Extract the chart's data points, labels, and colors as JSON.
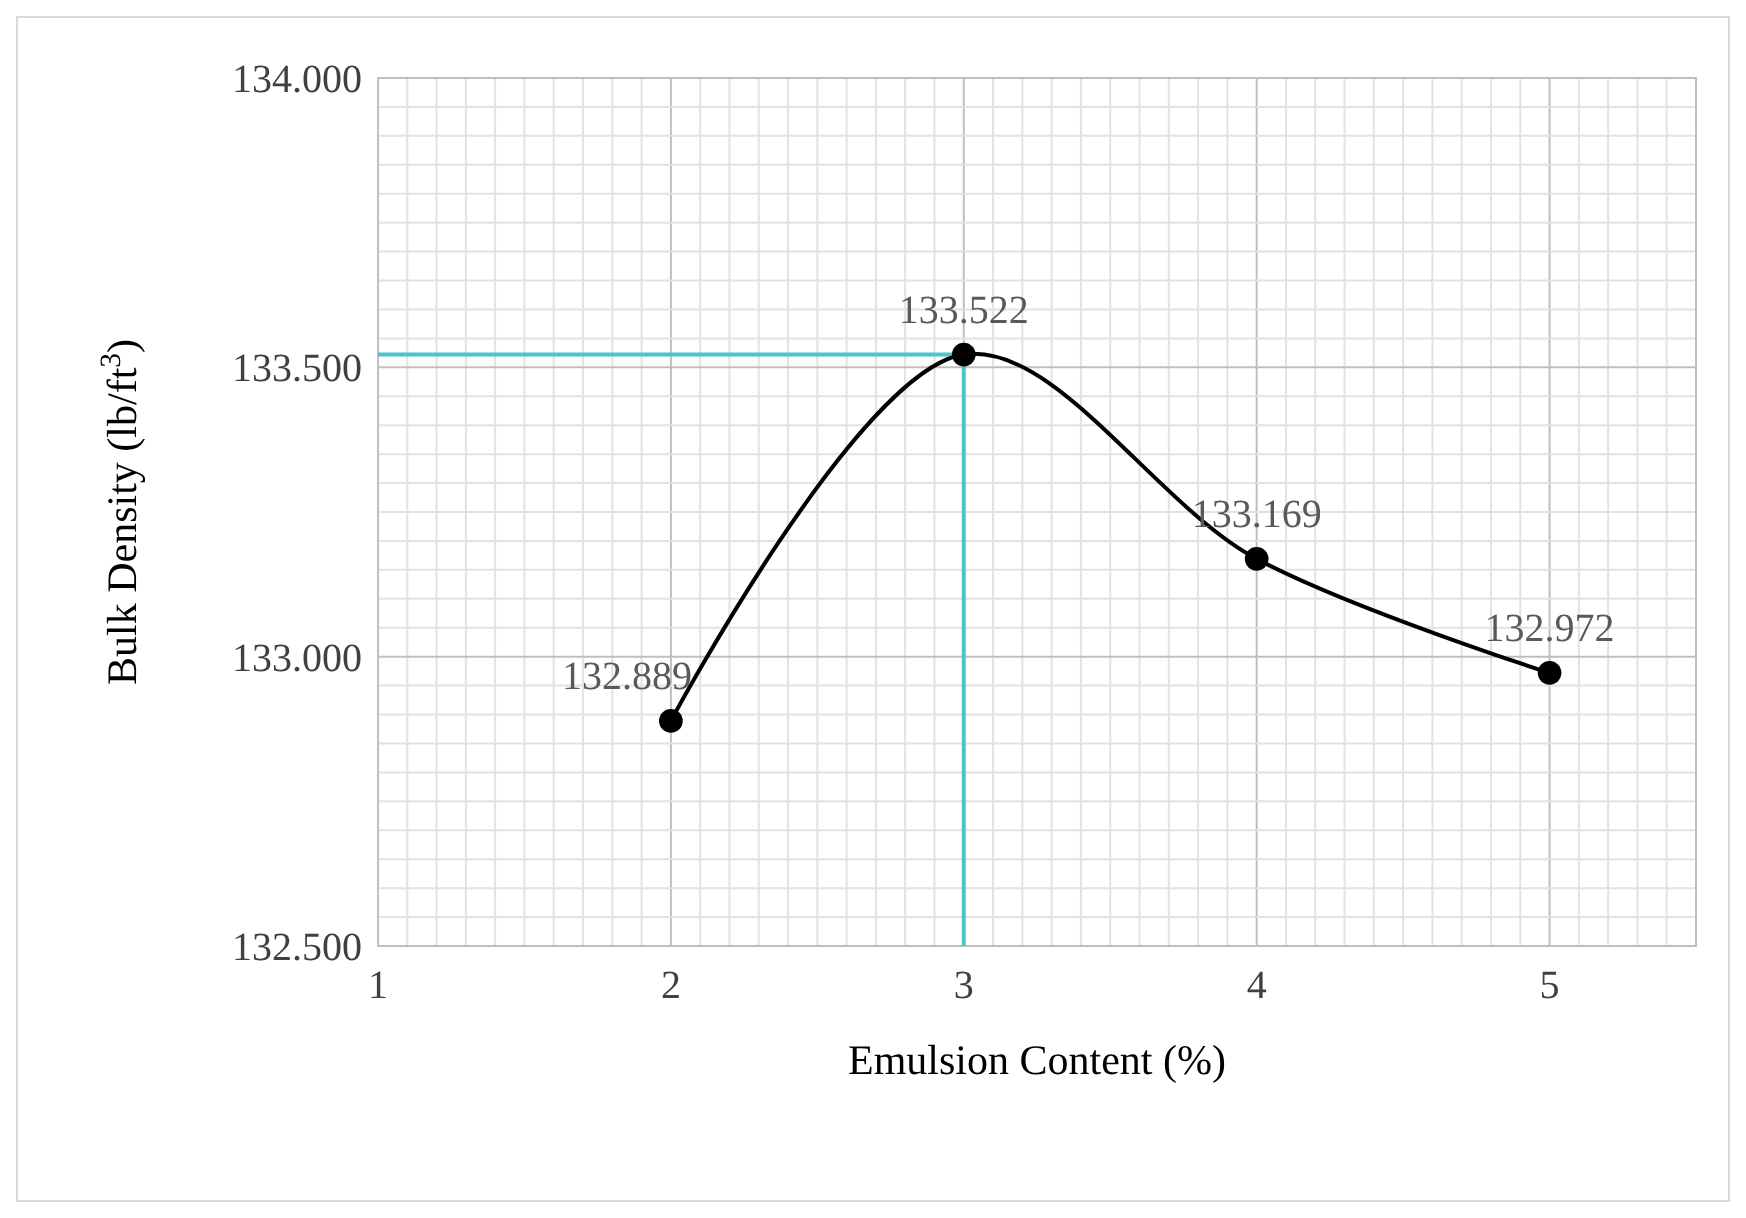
{
  "chart_data": {
    "type": "line",
    "xlabel": "Emulsion Content (%)",
    "ylabel": "Bulk Density (lb/ft$^{3}$)",
    "x": [
      2,
      3,
      4,
      5
    ],
    "series": [
      {
        "color": "#000000",
        "values": [
          132.889,
          133.522,
          133.169,
          132.972
        ]
      }
    ],
    "value_labels": [
      "132.889",
      "133.522",
      "133.169",
      "132.972"
    ],
    "xlim": [
      1,
      5.5
    ],
    "xticks": [
      1,
      {
        "value": 1.1,
        "label": null
      },
      {
        "value": 1.2,
        "label": null
      },
      {
        "value": 1.3,
        "label": null
      },
      {
        "value": 1.4,
        "label": null
      },
      {
        "value": 1.5,
        "label": null
      },
      {
        "value": 1.6,
        "label": null
      },
      {
        "value": 1.7,
        "label": null
      },
      {
        "value": 1.8,
        "label": null
      },
      {
        "value": 1.9,
        "label": null
      },
      2,
      {
        "value": 2.1,
        "label": null
      },
      {
        "value": 2.2,
        "label": null
      },
      {
        "value": 2.3,
        "label": null
      },
      {
        "value": 2.4,
        "label": null
      },
      {
        "value": 2.5,
        "label": null
      },
      {
        "value": 2.6,
        "label": null
      },
      {
        "value": 2.7,
        "label": null
      },
      {
        "value": 2.8,
        "label": null
      },
      {
        "value": 2.9,
        "label": null
      },
      3,
      {
        "value": 3.1,
        "label": null
      },
      {
        "value": 3.2,
        "label": null
      },
      {
        "value": 3.3,
        "label": null
      },
      {
        "value": 3.4,
        "label": null
      },
      {
        "value": 3.5,
        "label": null
      },
      {
        "value": 3.6,
        "label": null
      },
      {
        "value": 3.7,
        "label": null
      },
      {
        "value": 3.8,
        "label": null
      },
      {
        "value": 3.9,
        "label": null
      },
      4,
      {
        "value": 4.1,
        "label": null
      },
      {
        "value": 4.2,
        "label": null
      },
      {
        "value": 4.3,
        "label": null
      },
      {
        "value": 4.4,
        "label": null
      },
      {
        "value": 4.5,
        "label": null
      },
      {
        "value": 4.6,
        "label": null
      },
      {
        "value": 4.7,
        "label": null
      },
      {
        "value": 4.8,
        "label": null
      },
      {
        "value": 4.9,
        "label": null
      },
      5,
      {
        "value": 5.1,
        "label": null
      },
      {
        "value": 5.2,
        "label": null
      },
      {
        "value": 5.3,
        "label": null
      },
      {
        "value": 5.4,
        "label": null
      }
    ],
    "ylim": [
      132.5,
      134
    ],
    "yticks": [
      {
        "value": 132.5,
        "label": "132.500"
      },
      {
        "value": 132.55,
        "label": null
      },
      {
        "value": 132.6,
        "label": null
      },
      {
        "value": 132.65,
        "label": null
      },
      {
        "value": 132.7,
        "label": null
      },
      {
        "value": 132.75,
        "label": null
      },
      {
        "value": 132.8,
        "label": null
      },
      {
        "value": 132.85,
        "label": null
      },
      {
        "value": 132.9,
        "label": null
      },
      {
        "value": 132.95,
        "label": null
      },
      {
        "value": 133,
        "label": "133.000"
      },
      {
        "value": 133.05,
        "label": null
      },
      {
        "value": 133.1,
        "label": null
      },
      {
        "value": 133.15,
        "label": null
      },
      {
        "value": 133.2,
        "label": null
      },
      {
        "value": 133.25,
        "label": null
      },
      {
        "value": 133.3,
        "label": null
      },
      {
        "value": 133.35,
        "label": null
      },
      {
        "value": 133.4,
        "label": null
      },
      {
        "value": 133.45,
        "label": null
      },
      {
        "value": 133.5,
        "label": "133.500"
      },
      {
        "value": 133.55,
        "label": null
      },
      {
        "value": 133.6,
        "label": null
      },
      {
        "value": 133.65,
        "label": null
      },
      {
        "value": 133.7,
        "label": null
      },
      {
        "value": 133.75,
        "label": null
      },
      {
        "value": 133.8,
        "label": null
      },
      {
        "value": 133.85,
        "label": null
      },
      {
        "value": 133.9,
        "label": null
      },
      {
        "value": 133.95,
        "label": null
      },
      {
        "value": 134,
        "label": "134.000"
      }
    ],
    "grid": true,
    "marker": "circle",
    "line_style": "solid",
    "ref_lines": [
      {
        "axis": "y",
        "value": 133.522,
        "color": "#4bc4cc"
      },
      {
        "axis": "x",
        "value": 3,
        "color": "#4bc4cc"
      }
    ]
  }
}
